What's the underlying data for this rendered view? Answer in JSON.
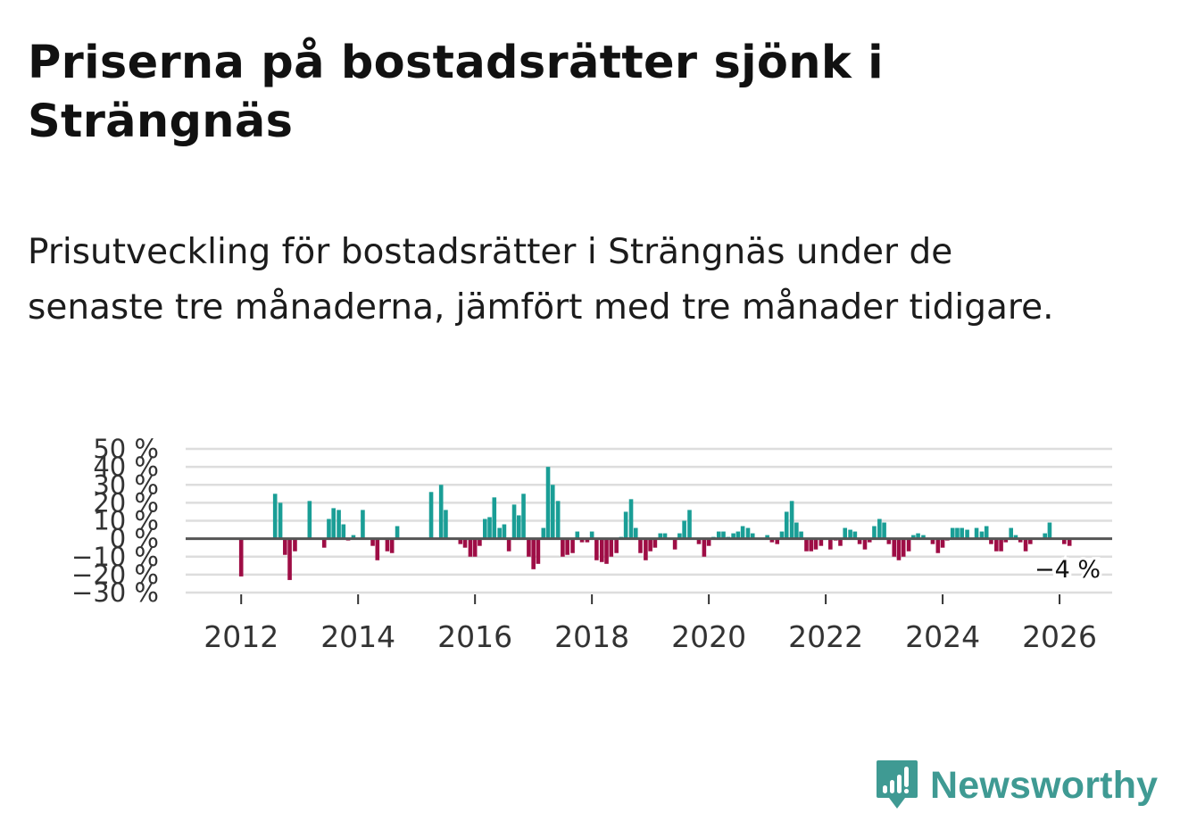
{
  "title": "Priserna på bostadsrätter sjönk i Strängnäs",
  "subtitle": "Prisutveckling för bostadsrätter i Strängnäs under de senaste tre månaderna, jämfört med tre månader tidigare.",
  "brand": {
    "name": "Newsworthy",
    "color": "#3f9a93"
  },
  "colors": {
    "positive": "#1a9e96",
    "negative": "#9e0d45",
    "grid": "#dddddd",
    "zero_line": "#555555",
    "axis_text": "#333333"
  },
  "chart_data": {
    "type": "bar",
    "title": "",
    "xlabel": "",
    "ylabel": "",
    "ylim": [
      -30,
      50
    ],
    "xlim": [
      2011.05,
      2026.9
    ],
    "y_ticks": [
      50,
      40,
      30,
      20,
      10,
      0,
      -10,
      -20,
      -30
    ],
    "y_tick_labels": [
      "50 %",
      "40 %",
      "30 %",
      "20 %",
      "10 %",
      "0 %",
      "−10 %",
      "−20 %",
      "−30 %"
    ],
    "x_ticks": [
      2012,
      2014,
      2016,
      2018,
      2020,
      2022,
      2024,
      2026
    ],
    "x_tick_labels": [
      "2012",
      "2014",
      "2016",
      "2018",
      "2020",
      "2022",
      "2024",
      "2026"
    ],
    "last_value_label": "−4 %",
    "series": [
      {
        "name": "Prisutveckling",
        "x": [
          2012.0,
          2012.58,
          2012.67,
          2012.75,
          2012.83,
          2012.92,
          2013.17,
          2013.42,
          2013.5,
          2013.58,
          2013.67,
          2013.75,
          2013.83,
          2013.92,
          2014.08,
          2014.25,
          2014.33,
          2014.5,
          2014.58,
          2014.67,
          2015.25,
          2015.42,
          2015.5,
          2015.75,
          2015.83,
          2015.92,
          2016.0,
          2016.08,
          2016.17,
          2016.25,
          2016.33,
          2016.42,
          2016.5,
          2016.58,
          2016.67,
          2016.75,
          2016.83,
          2016.92,
          2017.0,
          2017.08,
          2017.17,
          2017.25,
          2017.33,
          2017.42,
          2017.5,
          2017.58,
          2017.67,
          2017.75,
          2017.83,
          2017.92,
          2018.0,
          2018.08,
          2018.17,
          2018.25,
          2018.33,
          2018.42,
          2018.5,
          2018.58,
          2018.67,
          2018.75,
          2018.83,
          2018.92,
          2019.0,
          2019.08,
          2019.17,
          2019.25,
          2019.42,
          2019.5,
          2019.58,
          2019.67,
          2019.83,
          2019.92,
          2020.0,
          2020.08,
          2020.17,
          2020.25,
          2020.33,
          2020.42,
          2020.5,
          2020.58,
          2020.67,
          2020.75,
          2021.0,
          2021.08,
          2021.17,
          2021.25,
          2021.33,
          2021.42,
          2021.5,
          2021.58,
          2021.67,
          2021.75,
          2021.83,
          2021.92,
          2022.08,
          2022.17,
          2022.25,
          2022.33,
          2022.42,
          2022.5,
          2022.58,
          2022.67,
          2022.75,
          2022.83,
          2022.92,
          2023.0,
          2023.08,
          2023.17,
          2023.25,
          2023.33,
          2023.42,
          2023.5,
          2023.58,
          2023.67,
          2023.83,
          2023.92,
          2024.0,
          2024.08,
          2024.17,
          2024.25,
          2024.33,
          2024.42,
          2024.58,
          2024.67,
          2024.75,
          2024.83,
          2024.92,
          2025.0,
          2025.08,
          2025.17,
          2025.25,
          2025.33,
          2025.42,
          2025.5,
          2025.75,
          2025.83,
          2026.08,
          2026.17
        ],
        "values": [
          -21,
          25,
          20,
          -9,
          -23,
          -7,
          21,
          -5,
          11,
          17,
          16,
          8,
          -1,
          2,
          16,
          -4,
          -12,
          -7,
          -8,
          7,
          26,
          30,
          16,
          -3,
          -5,
          -10,
          -10,
          -4,
          11,
          12,
          23,
          6,
          8,
          -7,
          19,
          13,
          25,
          -10,
          -17,
          -14,
          6,
          40,
          30,
          21,
          -10,
          -9,
          -8,
          4,
          -2,
          -2,
          4,
          -12,
          -13,
          -14,
          -10,
          -8,
          1,
          15,
          22,
          6,
          -8,
          -12,
          -7,
          -5,
          3,
          3,
          -6,
          3,
          10,
          16,
          -3,
          -10,
          -4,
          1,
          4,
          4,
          1,
          3,
          4,
          7,
          6,
          3,
          2,
          -2,
          -3,
          4,
          15,
          21,
          9,
          4,
          -7,
          -7,
          -6,
          -4,
          -6,
          -1,
          -4,
          6,
          5,
          4,
          -3,
          -6,
          -2,
          7,
          11,
          9,
          -3,
          -10,
          -12,
          -10,
          -7,
          2,
          3,
          2,
          -3,
          -8,
          -5,
          -1,
          6,
          6,
          6,
          5,
          6,
          4,
          7,
          -3,
          -7,
          -7,
          -2,
          6,
          2,
          -2,
          -7,
          -3,
          3,
          9,
          -3,
          -4
        ]
      }
    ]
  }
}
